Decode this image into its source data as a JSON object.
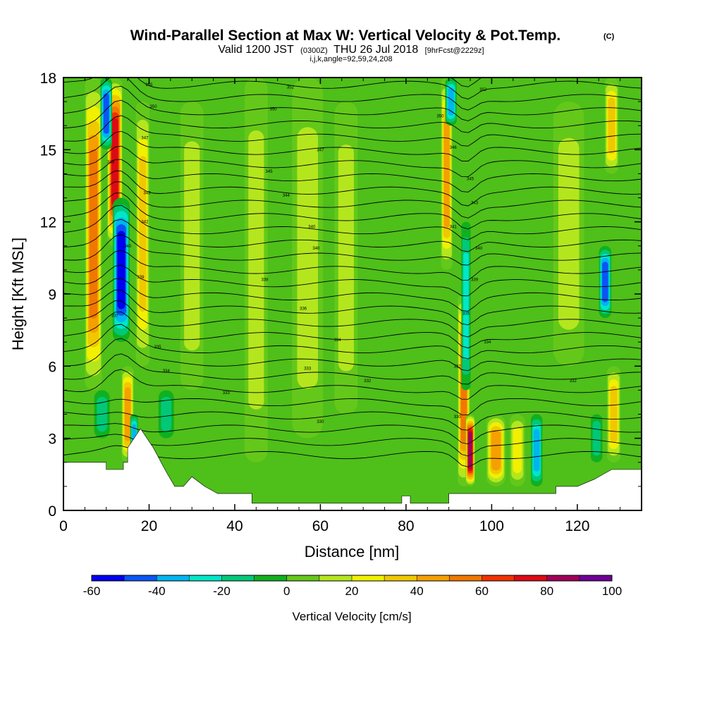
{
  "chart_data": {
    "type": "heatmap",
    "title": "Wind-Parallel Section at Max W: Vertical Velocity & Pot.Temp.",
    "title_mark": "(C)",
    "subtitle_parts": [
      "Valid 1200 JST",
      "(0300Z)",
      "THU 26 Jul 2018",
      "[9hrFcst@2229z]"
    ],
    "subtitle2": "i,j,k,angle=92,59,24,208",
    "xlabel": "Distance [nm]",
    "ylabel": "Height [Kft MSL]",
    "xlim": [
      0,
      135
    ],
    "ylim": [
      0,
      18
    ],
    "x_ticks": [
      "0",
      "20",
      "40",
      "60",
      "80",
      "100",
      "120"
    ],
    "y_ticks": [
      "0",
      "3",
      "6",
      "9",
      "12",
      "15",
      "18"
    ],
    "colorbar": {
      "label": "Vertical Velocity [cm/s]",
      "range": [
        -60,
        100
      ],
      "tick_labels": [
        "-60",
        "-40",
        "-20",
        "0",
        "20",
        "40",
        "60",
        "80",
        "100"
      ],
      "colors": [
        "#0000f0",
        "#0a55f5",
        "#00b4f0",
        "#00e6c8",
        "#00c878",
        "#10b020",
        "#64c81a",
        "#b4e61e",
        "#f0f000",
        "#f0c800",
        "#f5a000",
        "#f07800",
        "#f03200",
        "#dc0a14",
        "#a0005a",
        "#6e0096"
      ]
    },
    "updrafts": [
      {
        "x": 7,
        "width": 2.2,
        "z_from": 5,
        "z_to": 18,
        "w": 55
      },
      {
        "x": 12,
        "width": 2.0,
        "z_from": 11,
        "z_to": 18,
        "w": 80
      },
      {
        "x": 15,
        "width": 1.6,
        "z_from": 2,
        "z_to": 6,
        "w": 50
      },
      {
        "x": 18.5,
        "width": 1.8,
        "z_from": 6,
        "z_to": 17,
        "w": 35
      },
      {
        "x": 30,
        "width": 3,
        "z_from": 5,
        "z_to": 17,
        "w": 15
      },
      {
        "x": 45,
        "width": 3,
        "z_from": 2,
        "z_to": 18,
        "w": 20
      },
      {
        "x": 57,
        "width": 4,
        "z_from": 3,
        "z_to": 18,
        "w": 15
      },
      {
        "x": 66,
        "width": 3,
        "z_from": 4,
        "z_to": 17,
        "w": 15
      },
      {
        "x": 89.5,
        "width": 1.5,
        "z_from": 10,
        "z_to": 18,
        "w": 45
      },
      {
        "x": 93.5,
        "width": 1.6,
        "z_from": 1,
        "z_to": 9,
        "w": 55
      },
      {
        "x": 95,
        "width": 1.2,
        "z_from": 1,
        "z_to": 4,
        "w": 85
      },
      {
        "x": 101,
        "width": 2.5,
        "z_from": 1,
        "z_to": 4,
        "w": 45
      },
      {
        "x": 106,
        "width": 2,
        "z_from": 1,
        "z_to": 4,
        "w": 30
      },
      {
        "x": 118,
        "width": 4,
        "z_from": 6,
        "z_to": 17,
        "w": 15
      },
      {
        "x": 128.5,
        "width": 1.8,
        "z_from": 2,
        "z_to": 6,
        "w": 40
      },
      {
        "x": 128,
        "width": 1.8,
        "z_from": 14,
        "z_to": 18,
        "w": 35
      }
    ],
    "downdrafts": [
      {
        "x": 10,
        "width": 1.5,
        "z_from": 15,
        "z_to": 18,
        "w": -45
      },
      {
        "x": 13.5,
        "width": 2.2,
        "z_from": 7,
        "z_to": 13,
        "w": -60
      },
      {
        "x": 16.5,
        "width": 1.0,
        "z_from": 2,
        "z_to": 4,
        "w": -35
      },
      {
        "x": 9,
        "width": 2,
        "z_from": 3,
        "z_to": 5,
        "w": -20
      },
      {
        "x": 24,
        "width": 2,
        "z_from": 3,
        "z_to": 5,
        "w": -20
      },
      {
        "x": 90.5,
        "width": 1.5,
        "z_from": 16,
        "z_to": 18,
        "w": -35
      },
      {
        "x": 94,
        "width": 1.2,
        "z_from": 5,
        "z_to": 12,
        "w": -25
      },
      {
        "x": 110.5,
        "width": 1.5,
        "z_from": 1,
        "z_to": 4,
        "w": -40
      },
      {
        "x": 126.5,
        "width": 1.6,
        "z_from": 8,
        "z_to": 11,
        "w": -45
      },
      {
        "x": 124.5,
        "width": 1.5,
        "z_from": 2,
        "z_to": 4,
        "w": -20
      }
    ],
    "terrain": [
      [
        0,
        2.0
      ],
      [
        10,
        2.0
      ],
      [
        10,
        1.7
      ],
      [
        14,
        1.7
      ],
      [
        14,
        2.0
      ],
      [
        15,
        2.0
      ],
      [
        15,
        2.6
      ],
      [
        18,
        3.4
      ],
      [
        21,
        2.6
      ],
      [
        24,
        1.6
      ],
      [
        26,
        1.0
      ],
      [
        28,
        1.0
      ],
      [
        30,
        1.4
      ],
      [
        33,
        1.0
      ],
      [
        36,
        0.7
      ],
      [
        44,
        0.7
      ],
      [
        44,
        0.3
      ],
      [
        79,
        0.3
      ],
      [
        79,
        0.6
      ],
      [
        81,
        0.6
      ],
      [
        81,
        0.3
      ],
      [
        90,
        0.3
      ],
      [
        90,
        0.7
      ],
      [
        115,
        0.7
      ],
      [
        115,
        1.0
      ],
      [
        120,
        1.0
      ],
      [
        124,
        1.3
      ],
      [
        128,
        1.7
      ],
      [
        135,
        1.7
      ]
    ],
    "theta_contours": [
      {
        "x": 20,
        "z": 17.7,
        "label": "355"
      },
      {
        "x": 53,
        "z": 17.6,
        "label": "352"
      },
      {
        "x": 98,
        "z": 17.5,
        "label": "352"
      },
      {
        "x": 21,
        "z": 16.8,
        "label": "350"
      },
      {
        "x": 49,
        "z": 16.7,
        "label": "350"
      },
      {
        "x": 88,
        "z": 16.4,
        "label": "350"
      },
      {
        "x": 19,
        "z": 15.5,
        "label": "347"
      },
      {
        "x": 60,
        "z": 15.0,
        "label": "347"
      },
      {
        "x": 91,
        "z": 15.1,
        "label": "346"
      },
      {
        "x": 11,
        "z": 14.5,
        "label": "345"
      },
      {
        "x": 48,
        "z": 14.1,
        "label": "345"
      },
      {
        "x": 95,
        "z": 13.8,
        "label": "345"
      },
      {
        "x": 19.5,
        "z": 13.2,
        "label": "343"
      },
      {
        "x": 52,
        "z": 13.1,
        "label": "344"
      },
      {
        "x": 96,
        "z": 12.8,
        "label": "343"
      },
      {
        "x": 19,
        "z": 12.0,
        "label": "342"
      },
      {
        "x": 58,
        "z": 11.8,
        "label": "340"
      },
      {
        "x": 91,
        "z": 11.8,
        "label": "341"
      },
      {
        "x": 15,
        "z": 11.0,
        "label": "340"
      },
      {
        "x": 59,
        "z": 10.9,
        "label": "340"
      },
      {
        "x": 97,
        "z": 10.9,
        "label": "340"
      },
      {
        "x": 18,
        "z": 9.7,
        "label": "339"
      },
      {
        "x": 47,
        "z": 9.6,
        "label": "338"
      },
      {
        "x": 96,
        "z": 9.6,
        "label": "339"
      },
      {
        "x": 12,
        "z": 8.1,
        "label": "337"
      },
      {
        "x": 56,
        "z": 8.4,
        "label": "336"
      },
      {
        "x": 94,
        "z": 8.2,
        "label": "335"
      },
      {
        "x": 22,
        "z": 6.8,
        "label": "335"
      },
      {
        "x": 64,
        "z": 7.1,
        "label": "334"
      },
      {
        "x": 99,
        "z": 7.0,
        "label": "334"
      },
      {
        "x": 24,
        "z": 5.8,
        "label": "334"
      },
      {
        "x": 57,
        "z": 5.9,
        "label": "333"
      },
      {
        "x": 92,
        "z": 6.0,
        "label": "332"
      },
      {
        "x": 38,
        "z": 4.9,
        "label": "333"
      },
      {
        "x": 71,
        "z": 5.4,
        "label": "332"
      },
      {
        "x": 119,
        "z": 5.4,
        "label": "332"
      },
      {
        "x": 60,
        "z": 3.7,
        "label": "330"
      },
      {
        "x": 92,
        "z": 3.9,
        "label": "330"
      }
    ]
  }
}
